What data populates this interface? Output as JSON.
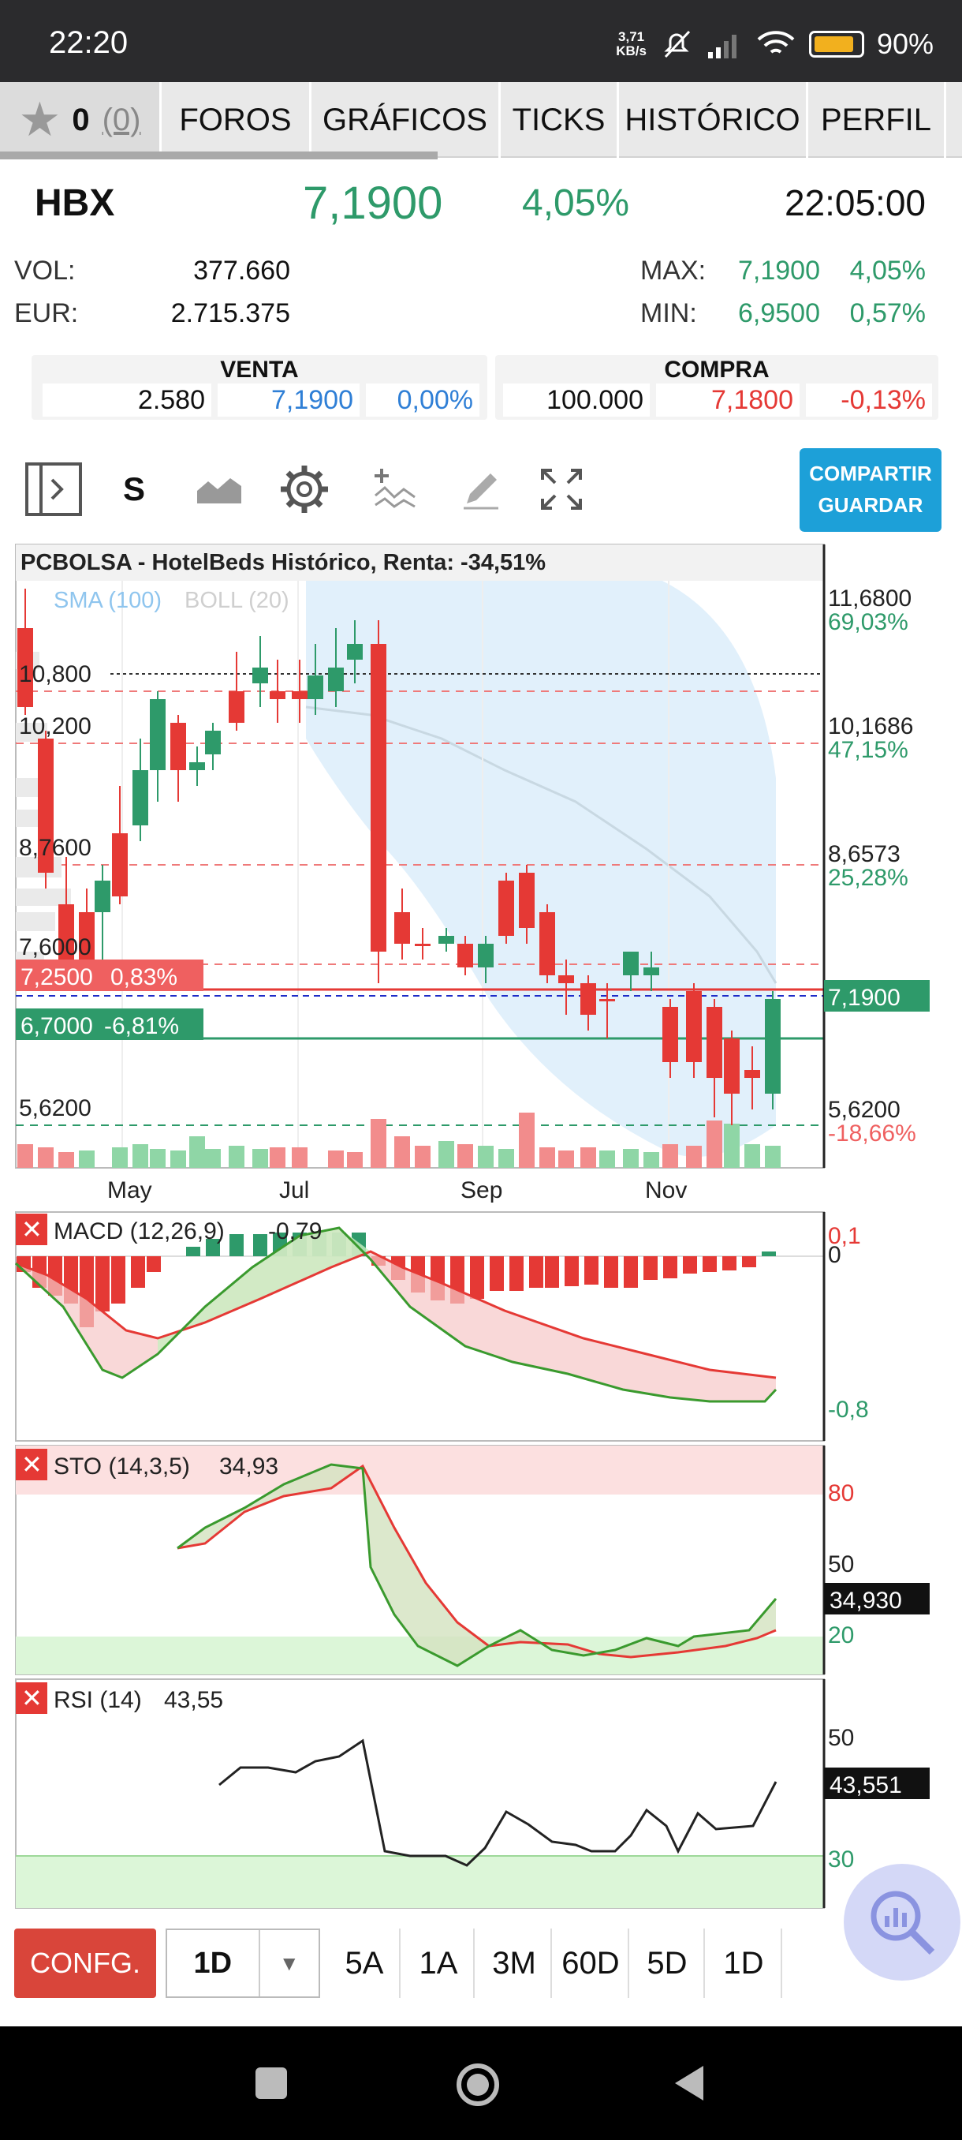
{
  "status_bar": {
    "time": "22:20",
    "speed_top": "3,71",
    "speed_bottom": "KB/s",
    "battery": "90%"
  },
  "tabs": {
    "favorites_count": "0",
    "favorites_count2": "(0)",
    "items": [
      "FOROS",
      "GRÁFICOS",
      "TICKS",
      "HISTÓRICO",
      "PERFIL"
    ]
  },
  "quote": {
    "symbol": "HBX",
    "last": "7,1900",
    "change_pct": "4,05%",
    "time": "22:05:00",
    "vol_label": "VOL:",
    "vol": "377.660",
    "eur_label": "EUR:",
    "eur": "2.715.375",
    "max_label": "MAX:",
    "max": "7,1900",
    "max_pct": "4,05%",
    "min_label": "MIN:",
    "min": "6,9500",
    "min_pct": "0,57%"
  },
  "book": {
    "sell": {
      "title": "VENTA",
      "qty": "2.580",
      "price": "7,1900",
      "pct": "0,00%"
    },
    "buy": {
      "title": "COMPRA",
      "qty": "100.000",
      "price": "7,1800",
      "pct": "-0,13%"
    }
  },
  "toolbar": {
    "s_label": "S",
    "share_line1": "COMPARTIR",
    "share_line2": "GUARDAR"
  },
  "chart": {
    "title": "PCBOLSA - HotelBeds Histórico, Renta: -34,51%",
    "legend_sma": "SMA (100)",
    "legend_boll": "BOLL (20)",
    "left_levels": [
      "10,800",
      "10,200",
      "8,7600",
      "7,6000",
      "5,6200"
    ],
    "right_levels": [
      {
        "value": "11,6800",
        "pct": "69,03%"
      },
      {
        "value": "10,1686",
        "pct": "47,15%"
      },
      {
        "value": "8,6573",
        "pct": "25,28%"
      },
      {
        "value": "5,6200",
        "pct": "-18,66%"
      }
    ],
    "last_tag": "7,1900",
    "line_red": {
      "price": "7,2500",
      "pct": "0,83%"
    },
    "line_green": {
      "price": "6,7000",
      "pct": "-6,81%"
    },
    "months": [
      "May",
      "Jul",
      "Sep",
      "Nov"
    ],
    "macd": {
      "label": "MACD (12,26,9)",
      "value": "-0,79",
      "ticks": [
        "0,1",
        "0",
        "-0,8"
      ]
    },
    "sto": {
      "label": "STO (14,3,5)",
      "value": "34,93",
      "ticks": [
        "80",
        "50",
        "20"
      ],
      "tag": "34,930"
    },
    "rsi": {
      "label": "RSI (14)",
      "value": "43,55",
      "ticks": [
        "50",
        "30"
      ],
      "tag": "43,551"
    }
  },
  "bottom": {
    "config": "CONFG.",
    "interval": "1D",
    "periods": [
      "5A",
      "1A",
      "3M",
      "60D",
      "5D",
      "1D"
    ]
  },
  "colors": {
    "up": "#2e9a6a",
    "down": "#e53935",
    "accent": "#1da0d8"
  }
}
